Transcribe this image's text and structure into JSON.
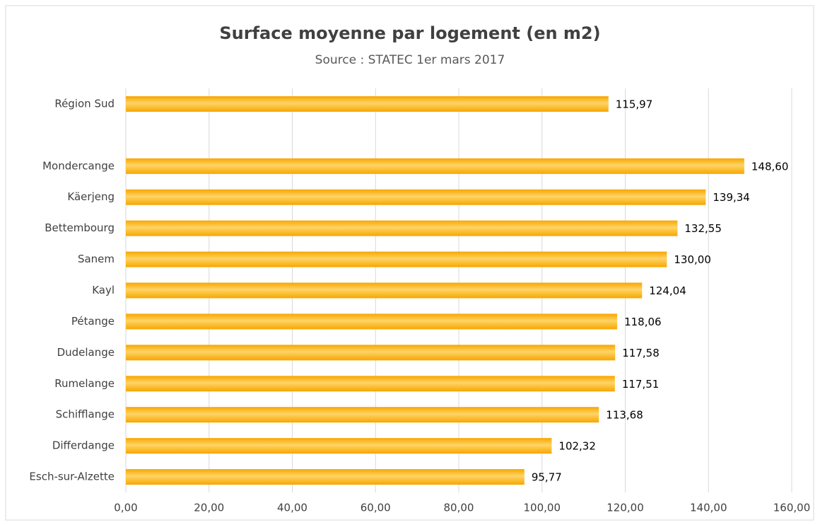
{
  "chart_data": {
    "type": "hbar",
    "title": "Surface moyenne par logement (en m2)",
    "subtitle": "Source : STATEC 1er mars 2017",
    "categories": [
      "Région Sud",
      null,
      "Mondercange",
      "Käerjeng",
      "Bettembourg",
      "Sanem",
      "Kayl",
      "Pétange",
      "Dudelange",
      "Rumelange",
      "Schifflange",
      "Differdange",
      "Esch-sur-Alzette"
    ],
    "values": [
      115.97,
      null,
      148.6,
      139.34,
      132.55,
      130.0,
      124.04,
      118.06,
      117.58,
      117.51,
      113.68,
      102.32,
      95.77
    ],
    "value_labels": [
      "115,97",
      null,
      "148,60",
      "139,34",
      "132,55",
      "130,00",
      "124,04",
      "118,06",
      "117,58",
      "117,51",
      "113,68",
      "102,32",
      "95,77"
    ],
    "color": "#f7a600",
    "xlim": [
      0,
      160
    ],
    "xticks": [
      {
        "value": 0,
        "label": "0,00"
      },
      {
        "value": 20,
        "label": "20,00"
      },
      {
        "value": 40,
        "label": "40,00"
      },
      {
        "value": 60,
        "label": "60,00"
      },
      {
        "value": 80,
        "label": "80,00"
      },
      {
        "value": 100,
        "label": "100,00"
      },
      {
        "value": 120,
        "label": "120,00"
      },
      {
        "value": 140,
        "label": "140,00"
      },
      {
        "value": 160,
        "label": "160,00"
      }
    ],
    "grid": true
  }
}
